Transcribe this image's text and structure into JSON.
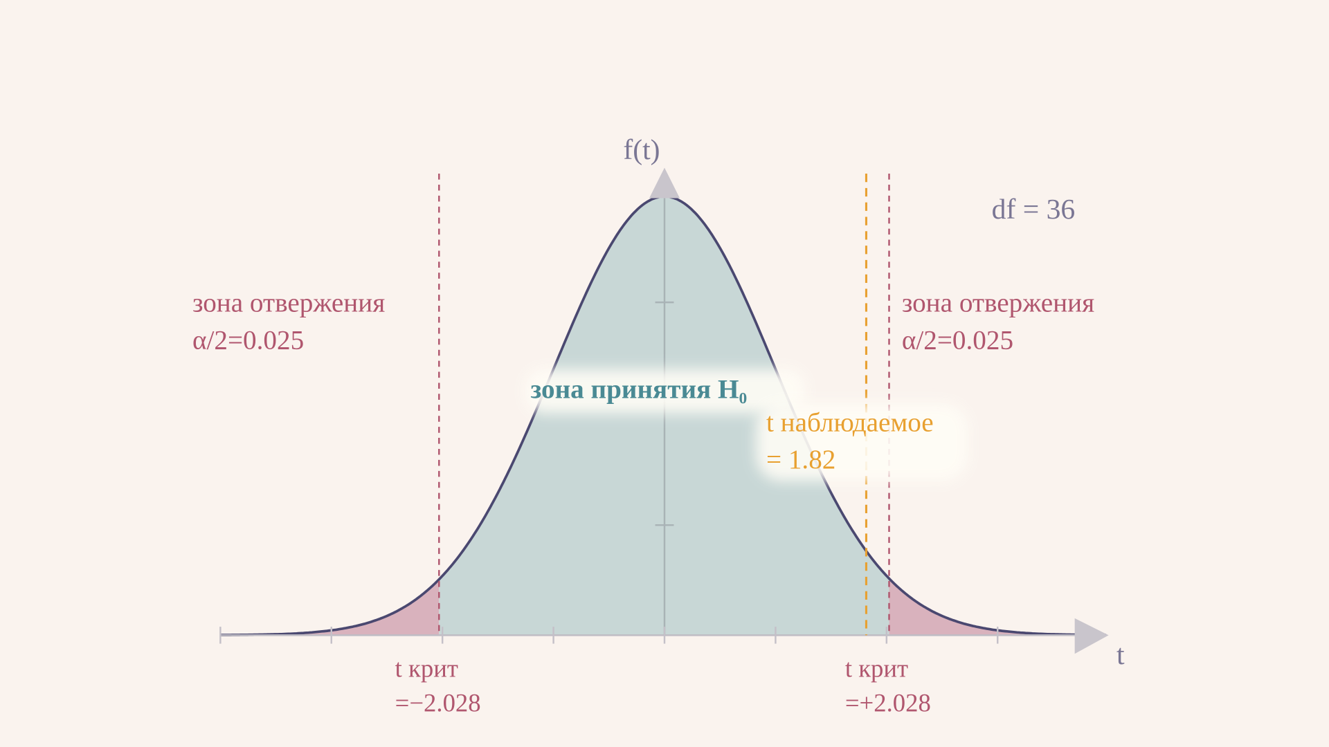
{
  "axis": {
    "y_label": "f(t)",
    "x_label": "t"
  },
  "df_label": "df = 36",
  "left_zone": {
    "title": "зона отвержения",
    "alpha": "α/2=0.025"
  },
  "right_zone": {
    "title": "зона отвержения",
    "alpha": "α/2=0.025"
  },
  "accept_zone": "зона принятия H₀",
  "observed": {
    "title": "t наблюдаемое",
    "value": "= 1.82"
  },
  "left_crit": {
    "title": "t крит",
    "value": "=−2.028"
  },
  "right_crit": {
    "title": "t крит",
    "value": "=+2.028"
  }
}
